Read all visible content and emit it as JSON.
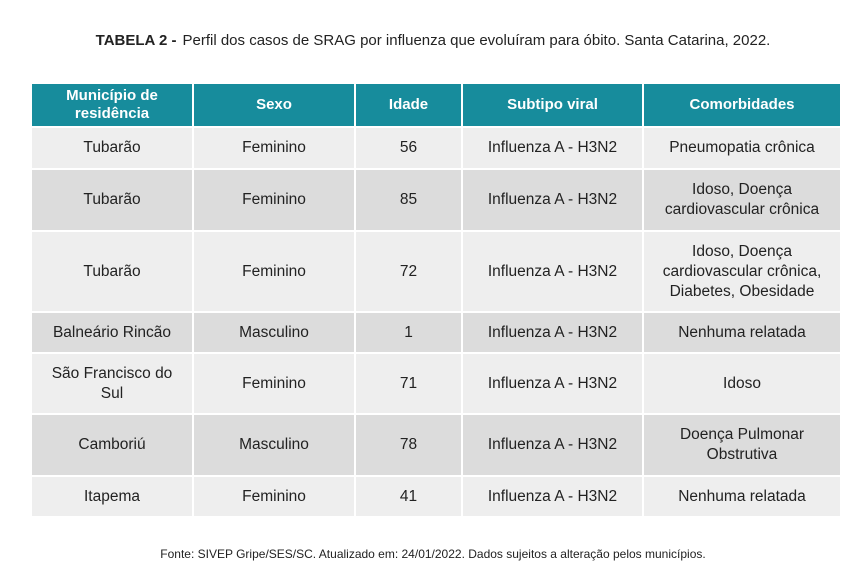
{
  "title": {
    "label": "TABELA 2 -",
    "text": "Perfil dos casos de SRAG por influenza que evoluíram para óbito. Santa Catarina, 2022."
  },
  "table": {
    "header": [
      "Município de residência",
      "Sexo",
      "Idade",
      "Subtipo viral",
      "Comorbidades"
    ],
    "rows": [
      [
        "Tubarão",
        "Feminino",
        56,
        "Influenza A - H3N2",
        "Pneumopatia crônica"
      ],
      [
        "Tubarão",
        "Feminino",
        85,
        "Influenza A - H3N2",
        "Idoso, Doença cardiovascular crônica"
      ],
      [
        "Tubarão",
        "Feminino",
        72,
        "Influenza A - H3N2",
        "Idoso, Doença cardiovascular crônica, Diabetes, Obesidade"
      ],
      [
        "Balneário Rincão",
        "Masculino",
        1,
        "Influenza A - H3N2",
        "Nenhuma relatada"
      ],
      [
        "São Francisco do Sul",
        "Feminino",
        71,
        "Influenza A - H3N2",
        "Idoso"
      ],
      [
        "Camboriú",
        "Masculino",
        78,
        "Influenza A - H3N2",
        "Doença Pulmonar Obstrutiva"
      ],
      [
        "Itapema",
        "Feminino",
        41,
        "Influenza A - H3N2",
        "Nenhuma relatada"
      ]
    ]
  },
  "footer": "Fonte: SIVEP Gripe/SES/SC. Atualizado em: 24/01/2022. Dados sujeitos a alteração pelos municípios."
}
